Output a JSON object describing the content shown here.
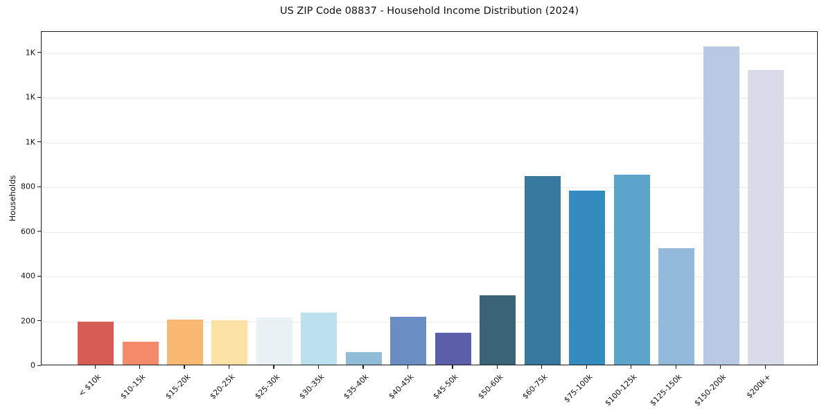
{
  "chart_data": {
    "type": "bar",
    "title": "US ZIP Code 08837 - Household Income Distribution (2024)",
    "xlabel": "",
    "ylabel": "Households",
    "categories": [
      "< $10k",
      "$10-15k",
      "$15-20k",
      "$20-25k",
      "$25-30k",
      "$30-35k",
      "$35-40k",
      "$40-45k",
      "$45-50k",
      "$50-60k",
      "$60-75k",
      "$75-100k",
      "$100-125k",
      "$125-150k",
      "$150-200k",
      "$200k+"
    ],
    "values": [
      192,
      102,
      202,
      200,
      210,
      232,
      55,
      214,
      142,
      310,
      845,
      780,
      850,
      520,
      1425,
      1318
    ],
    "bar_colors": [
      "#d65d55",
      "#f48a69",
      "#fab873",
      "#fce3a5",
      "#e9f1f4",
      "#bde0ee",
      "#90bcd8",
      "#6a8ec3",
      "#5b5fa9",
      "#3a6376",
      "#36789e",
      "#348bc0",
      "#5da4ca",
      "#93b9da",
      "#b7c9e3",
      "#d9dbe9"
    ],
    "ylim": [
      0,
      1495
    ],
    "yticks": [
      {
        "value": 0,
        "label": "0"
      },
      {
        "value": 200,
        "label": "200"
      },
      {
        "value": 400,
        "label": "400"
      },
      {
        "value": 600,
        "label": "600"
      },
      {
        "value": 800,
        "label": "800"
      },
      {
        "value": 1000,
        "label": "1K"
      },
      {
        "value": 1200,
        "label": "1K"
      },
      {
        "value": 1400,
        "label": "1K"
      }
    ],
    "grid": "horizontal",
    "legend": "none"
  },
  "style_colors": {
    "axis": "#1a1a1a",
    "grid": "#e9e9e9",
    "background": "#ffffff",
    "text": "#111111"
  }
}
